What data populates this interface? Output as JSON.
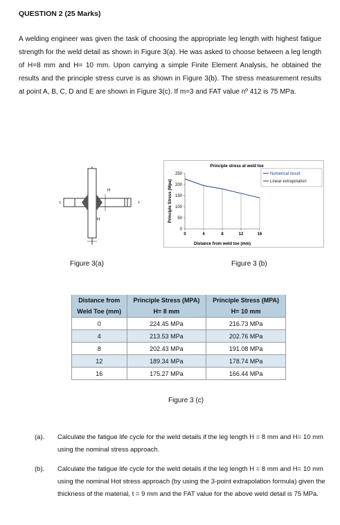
{
  "header": {
    "title": "QUESTION 2 (25 Marks)"
  },
  "intro": "A welding engineer was given the task of choosing the appropriate leg length with highest fatigue strength for the weld detail as shown in Figure 3(a). He was asked to choose between a leg length of H=8 mm and H= 10 mm. Upon carrying a simple Finite Element Analysis, he obtained the results and the principle stress curve is as shown in Figure 3(b). The stress measurement results at point A, B, C, D and E are shown in Figure 3(c). If m=3 and FAT value nº 412 is 75 MPa.",
  "figure_a": {
    "caption": "Figure 3(a)",
    "labels": [
      "t",
      "H",
      "H",
      "t"
    ]
  },
  "figure_b": {
    "caption": "Figure 3 (b)",
    "chart_data": {
      "type": "line",
      "title": "Principle stress at weld toe",
      "x_label": "Distance from weld toe (mm)",
      "y_label": "Principle Stress (Mpa)",
      "x": [
        0,
        4,
        8,
        12,
        16
      ],
      "series": [
        {
          "name": "Numerical result",
          "color": "#1f3f8f",
          "values": [
            225,
            195,
            180,
            160,
            140
          ]
        }
      ],
      "legend_extra": {
        "name": "Linear extrapolation",
        "color": "#333333"
      },
      "xlim": [
        0,
        16
      ],
      "ylim": [
        0,
        250
      ],
      "xticks": [
        0,
        4,
        8,
        12,
        16
      ],
      "yticks": [
        0,
        50,
        100,
        150,
        200,
        250
      ]
    }
  },
  "table": {
    "header": [
      [
        "Distance from",
        "Weld Toe (mm)"
      ],
      [
        "Principle Stress (MPA)",
        "H= 8 mm"
      ],
      [
        "Principle Stress (MPA)",
        "H= 10 mm"
      ]
    ],
    "rows": [
      [
        "0",
        "224.45 MPa",
        "216.73 MPa"
      ],
      [
        "4",
        "213.53 MPa",
        "202.76 MPa"
      ],
      [
        "8",
        "202.43 MPa",
        "191.08 MPa"
      ],
      [
        "12",
        "189.34 MPa",
        "178.74 MPa"
      ],
      [
        "16",
        "175.27 MPa",
        "166.44 MPa"
      ]
    ],
    "caption": "Figure 3 (c)"
  },
  "questions": [
    {
      "label": "(a).",
      "text": "Calculate the fatigue life cycle for the weld details if the leg length H = 8 mm and H= 10 mm using the nominal stress approach."
    },
    {
      "label": "(b).",
      "text": "Calculate the fatigue life cycle for the weld details if the leg length H = 8 mm and H= 10 mm using the nominal Hot stress approach (by using the 3-point extrapolation formula) given the thickness of the material, t = 9 mm and the FAT value for the above weld detail is 75 MPa."
    }
  ]
}
